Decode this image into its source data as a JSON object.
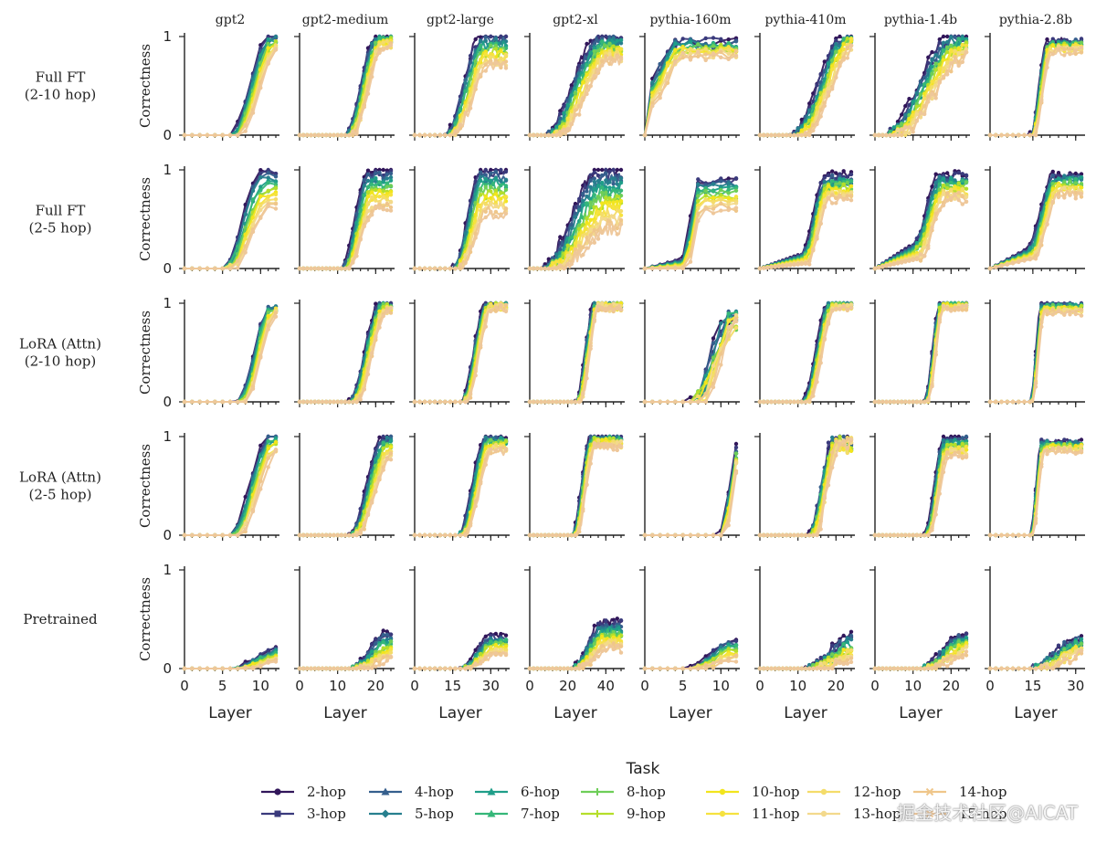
{
  "chart_data": {
    "type": "line",
    "ylabel": "Correctness",
    "xlabel": "Layer",
    "ylim": [
      0,
      1
    ],
    "yticks": [
      "0",
      "1"
    ],
    "legend": {
      "title": "Task",
      "placement": "bottom-center"
    },
    "tasks": [
      {
        "name": "2-hop",
        "color": "#31165a"
      },
      {
        "name": "3-hop",
        "color": "#3a3a7c"
      },
      {
        "name": "4-hop",
        "color": "#355f8d"
      },
      {
        "name": "5-hop",
        "color": "#277f8e"
      },
      {
        "name": "6-hop",
        "color": "#1f9e89"
      },
      {
        "name": "7-hop",
        "color": "#35b779"
      },
      {
        "name": "8-hop",
        "color": "#6ece58"
      },
      {
        "name": "9-hop",
        "color": "#b5de2b"
      },
      {
        "name": "10-hop",
        "color": "#f2e51d"
      },
      {
        "name": "11-hop",
        "color": "#f6e23f"
      },
      {
        "name": "12-hop",
        "color": "#f4dc6a"
      },
      {
        "name": "13-hop",
        "color": "#f3d98c"
      },
      {
        "name": "14-hop",
        "color": "#efc68a"
      },
      {
        "name": "15-hop",
        "color": "#eec79a"
      }
    ],
    "models": [
      {
        "name": "gpt2",
        "layers": 12,
        "xticks": [
          0,
          5,
          10
        ],
        "xtick_labels": [
          "0",
          "5",
          "10"
        ]
      },
      {
        "name": "gpt2-medium",
        "layers": 24,
        "xticks": [
          0,
          10,
          20
        ],
        "xtick_labels": [
          "0",
          "10",
          "20"
        ]
      },
      {
        "name": "gpt2-large",
        "layers": 36,
        "xticks": [
          0,
          15,
          30
        ],
        "xtick_labels": [
          "0",
          "15",
          "30"
        ]
      },
      {
        "name": "gpt2-xl",
        "layers": 48,
        "xticks": [
          0,
          20,
          40
        ],
        "xtick_labels": [
          "0",
          "20",
          "40"
        ]
      },
      {
        "name": "pythia-160m",
        "layers": 12,
        "xticks": [
          0,
          5,
          10
        ],
        "xtick_labels": [
          "0",
          "5",
          "10"
        ]
      },
      {
        "name": "pythia-410m",
        "layers": 24,
        "xticks": [
          0,
          10,
          20
        ],
        "xtick_labels": [
          "0",
          "10",
          "20"
        ]
      },
      {
        "name": "pythia-1.4b",
        "layers": 24,
        "xticks": [
          0,
          10,
          20
        ],
        "xtick_labels": [
          "0",
          "10",
          "20"
        ]
      },
      {
        "name": "pythia-2.8b",
        "layers": 32,
        "xticks": [
          0,
          15,
          30
        ],
        "xtick_labels": [
          "0",
          "15",
          "30"
        ]
      }
    ],
    "rows": [
      {
        "label": [
          "Full FT",
          "(2-10 hop)"
        ],
        "curves": [
          {
            "onset": 6,
            "end": 11,
            "max": [
              1.0,
              0.85
            ],
            "noise": 0.04
          },
          {
            "onset": 12,
            "end": 20,
            "max": [
              1.0,
              0.9
            ],
            "noise": 0.04
          },
          {
            "onset": 12,
            "end": 26,
            "max": [
              1.0,
              0.7
            ],
            "noise": 0.05
          },
          {
            "onset": 8,
            "end": 36,
            "max": [
              1.0,
              0.75
            ],
            "noise": 0.05
          },
          {
            "onset": 0,
            "end": 4,
            "max": [
              0.95,
              0.8
            ],
            "noise": 0.05,
            "start": [
              0.3,
              0.5
            ]
          },
          {
            "onset": 8,
            "end": 22,
            "max": [
              1.0,
              0.9
            ],
            "noise": 0.05
          },
          {
            "onset": 2,
            "end": 20,
            "max": [
              1.0,
              0.8
            ],
            "noise": 0.06
          },
          {
            "onset": 14,
            "end": 20,
            "max": [
              0.95,
              0.85
            ],
            "noise": 0.04
          }
        ]
      },
      {
        "label": [
          "Full FT",
          "(2-5 hop)"
        ],
        "curves": [
          {
            "onset": 5,
            "end": 10,
            "max": [
              1.0,
              0.6
            ],
            "noise": 0.04
          },
          {
            "onset": 11,
            "end": 18,
            "max": [
              1.0,
              0.6
            ],
            "noise": 0.04
          },
          {
            "onset": 15,
            "end": 26,
            "max": [
              1.0,
              0.55
            ],
            "noise": 0.05
          },
          {
            "onset": 6,
            "end": 36,
            "max": [
              1.0,
              0.4
            ],
            "noise": 0.06
          },
          {
            "onset": 5,
            "end": 7,
            "max": [
              0.9,
              0.6
            ],
            "noise": 0.04,
            "start": [
              0.0,
              0.1
            ]
          },
          {
            "onset": 11,
            "end": 17,
            "max": [
              0.95,
              0.7
            ],
            "noise": 0.04,
            "start": [
              0.05,
              0.15
            ]
          },
          {
            "onset": 10,
            "end": 17,
            "max": [
              0.95,
              0.7
            ],
            "noise": 0.05,
            "start": [
              0.1,
              0.25
            ]
          },
          {
            "onset": 13,
            "end": 22,
            "max": [
              0.95,
              0.75
            ],
            "noise": 0.04,
            "start": [
              0.1,
              0.2
            ]
          }
        ]
      },
      {
        "label": [
          "LoRA (Attn)",
          "(2-10 hop)"
        ],
        "curves": [
          {
            "onset": 7,
            "end": 11,
            "max": [
              0.95,
              0.9
            ],
            "noise": 0.04
          },
          {
            "onset": 13,
            "end": 21,
            "max": [
              1.0,
              0.92
            ],
            "noise": 0.04
          },
          {
            "onset": 18,
            "end": 28,
            "max": [
              1.0,
              0.95
            ],
            "noise": 0.04
          },
          {
            "onset": 24,
            "end": 34,
            "max": [
              1.0,
              0.95
            ],
            "noise": 0.04
          },
          {
            "onset": 6,
            "end": 11,
            "max": [
              0.85,
              0.8
            ],
            "noise": 0.1
          },
          {
            "onset": 11,
            "end": 18,
            "max": [
              1.0,
              0.95
            ],
            "noise": 0.03
          },
          {
            "onset": 13,
            "end": 17,
            "max": [
              1.0,
              0.95
            ],
            "noise": 0.03
          },
          {
            "onset": 14,
            "end": 18,
            "max": [
              1.0,
              0.9
            ],
            "noise": 0.03
          }
        ]
      },
      {
        "label": [
          "LoRA (Attn)",
          "(2-5 hop)"
        ],
        "curves": [
          {
            "onset": 6,
            "end": 11,
            "max": [
              1.0,
              0.85
            ],
            "noise": 0.04
          },
          {
            "onset": 13,
            "end": 22,
            "max": [
              1.0,
              0.8
            ],
            "noise": 0.04
          },
          {
            "onset": 17,
            "end": 28,
            "max": [
              1.0,
              0.85
            ],
            "noise": 0.04
          },
          {
            "onset": 22,
            "end": 32,
            "max": [
              1.0,
              0.9
            ],
            "noise": 0.04
          },
          {
            "onset": 10,
            "end": 12,
            "max": [
              0.9,
              0.75
            ],
            "noise": 0.05
          },
          {
            "onset": 13,
            "end": 19,
            "max": [
              0.95,
              0.9
            ],
            "noise": 0.08
          },
          {
            "onset": 13,
            "end": 18,
            "max": [
              1.0,
              0.8
            ],
            "noise": 0.04
          },
          {
            "onset": 14,
            "end": 18,
            "max": [
              0.95,
              0.85
            ],
            "noise": 0.03
          }
        ]
      },
      {
        "label": [
          "Pretrained"
        ],
        "curves": [
          {
            "onset": 6,
            "end": 12,
            "max": [
              0.2,
              0.08
            ],
            "noise": 0.02
          },
          {
            "onset": 13,
            "end": 23,
            "max": [
              0.37,
              0.1
            ],
            "noise": 0.03
          },
          {
            "onset": 18,
            "end": 30,
            "max": [
              0.33,
              0.15
            ],
            "noise": 0.03
          },
          {
            "onset": 22,
            "end": 38,
            "max": [
              0.47,
              0.2
            ],
            "noise": 0.04
          },
          {
            "onset": 6,
            "end": 11,
            "max": [
              0.28,
              0.1
            ],
            "noise": 0.03
          },
          {
            "onset": 12,
            "end": 24,
            "max": [
              0.33,
              0.1
            ],
            "noise": 0.05
          },
          {
            "onset": 12,
            "end": 22,
            "max": [
              0.33,
              0.15
            ],
            "noise": 0.04
          },
          {
            "onset": 14,
            "end": 30,
            "max": [
              0.3,
              0.15
            ],
            "noise": 0.05
          }
        ]
      }
    ]
  },
  "watermark": "掘金技术社区@AICAT"
}
